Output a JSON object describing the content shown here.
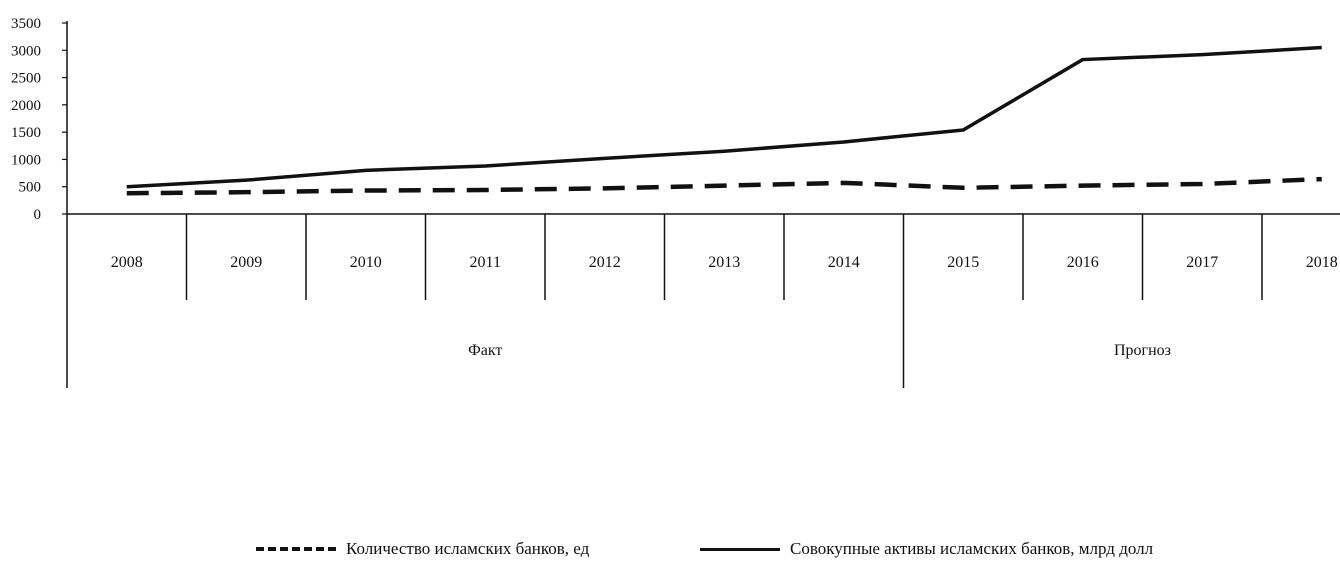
{
  "chart_data": {
    "type": "line",
    "title": "",
    "xlabel": "",
    "ylabel": "",
    "categories": [
      "2008",
      "2009",
      "2010",
      "2011",
      "2012",
      "2013",
      "2014",
      "2015",
      "2016",
      "2017",
      "2018"
    ],
    "groups": [
      {
        "label": "Факт",
        "categories": [
          "2008",
          "2009",
          "2010",
          "2011",
          "2012",
          "2013",
          "2014"
        ]
      },
      {
        "label": "Прогноз",
        "categories": [
          "2015",
          "2016",
          "2017",
          "2018"
        ]
      }
    ],
    "yticks": [
      0,
      500,
      1000,
      1500,
      2000,
      2500,
      3000,
      3500
    ],
    "ylim": [
      0,
      3500
    ],
    "grid": false,
    "legend_position": "bottom",
    "series": [
      {
        "name": "Количество исламских банков, ед",
        "style": "dashed",
        "color": "#111111",
        "values": [
          380,
          400,
          430,
          440,
          470,
          520,
          570,
          480,
          520,
          550,
          640
        ]
      },
      {
        "name": "Совокупные активы исламских банков, млрд долл",
        "style": "solid",
        "color": "#111111",
        "values": [
          500,
          620,
          800,
          880,
          1020,
          1150,
          1320,
          1540,
          2830,
          2920,
          3050
        ]
      }
    ]
  }
}
